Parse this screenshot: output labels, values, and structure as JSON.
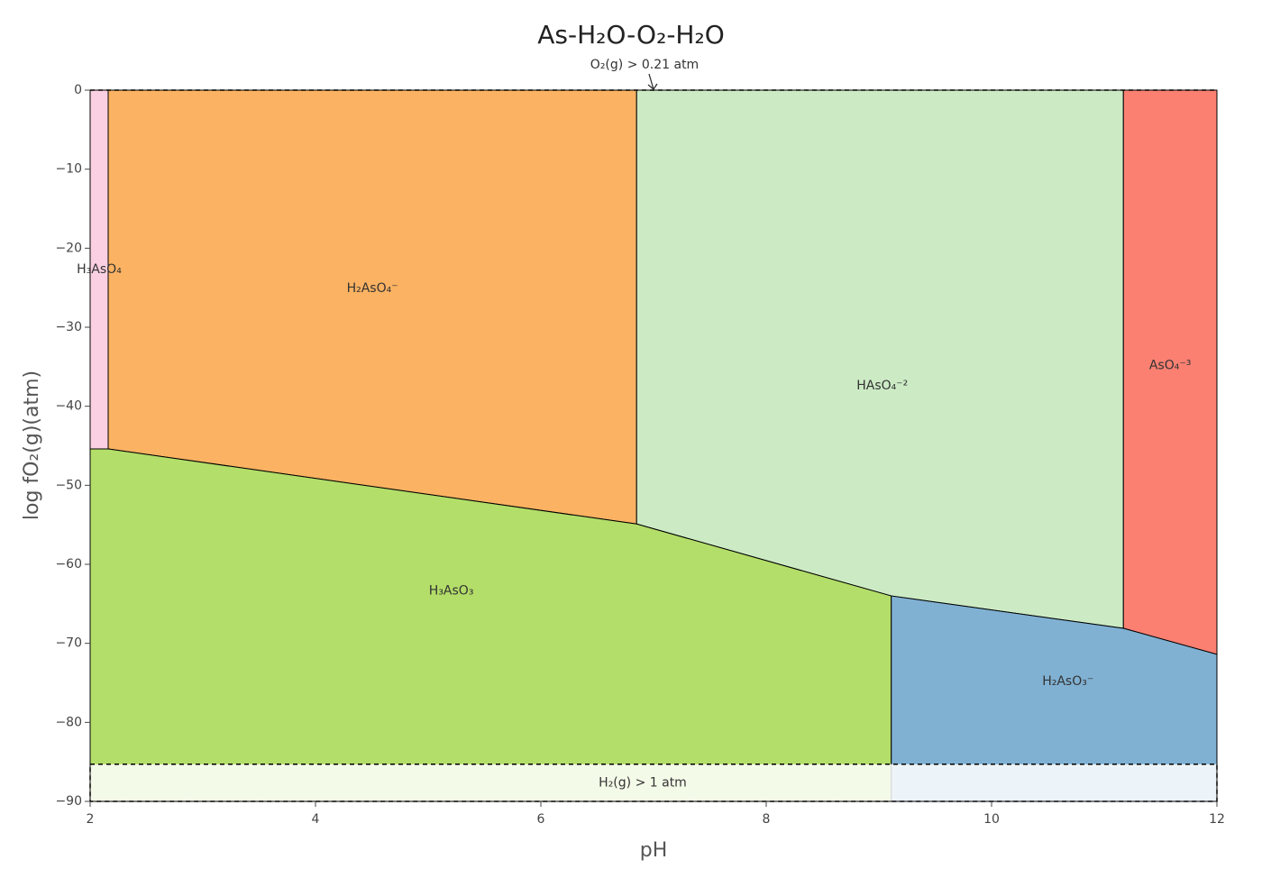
{
  "chart_data": {
    "type": "predominance",
    "title": "As-H₂O-O₂-H₂O",
    "x_label": "pH",
    "y_label": "log fO₂(g)(atm)",
    "xlim": [
      2,
      12
    ],
    "ylim": [
      -90,
      0
    ],
    "xticks": [
      2,
      4,
      6,
      8,
      10,
      12
    ],
    "yticks": [
      {
        "value": 0,
        "label": "0"
      },
      {
        "value": -10,
        "label": "−10"
      },
      {
        "value": -20,
        "label": "−20"
      },
      {
        "value": -30,
        "label": "−30"
      },
      {
        "value": -40,
        "label": "−40"
      },
      {
        "value": -50,
        "label": "−50"
      },
      {
        "value": -60,
        "label": "−60"
      },
      {
        "value": -70,
        "label": "−70"
      },
      {
        "value": -80,
        "label": "−80"
      },
      {
        "value": -90,
        "label": "−90"
      }
    ],
    "o2_limit": 0,
    "o2_label": "O₂(g) > 0.21 atm",
    "o2_label_x": 7,
    "h2_limit": -85.3,
    "h2_label": "H₂(g) > 1 atm",
    "regions": [
      {
        "name": "H₃AsO₄",
        "color": "#fbd0e2",
        "x": [
          2,
          2.16,
          2.16,
          2
        ],
        "y": [
          0,
          0,
          -45.4,
          -45.4
        ]
      },
      {
        "name": "H₂AsO₄⁻",
        "color": "#fbb262",
        "x": [
          2.16,
          6.85,
          6.85,
          2.16
        ],
        "y": [
          0,
          0,
          -54.9,
          -45.4
        ]
      },
      {
        "name": "HAsO₄⁻²",
        "color": "#ccebc5",
        "x": [
          6.85,
          11.17,
          11.17,
          9.11,
          6.85
        ],
        "y": [
          0,
          0,
          -68.1,
          -64.0,
          -54.9
        ]
      },
      {
        "name": "AsO₄⁻³",
        "color": "#fb8072",
        "x": [
          11.17,
          12,
          12,
          11.17
        ],
        "y": [
          0,
          0,
          -71.4,
          -68.1
        ]
      },
      {
        "name": "H₃AsO₃",
        "color": "#b3de69",
        "x": [
          2,
          2.16,
          6.85,
          9.11,
          9.11,
          2
        ],
        "y": [
          -45.4,
          -45.4,
          -54.9,
          -64.0,
          -90,
          -90
        ]
      },
      {
        "name": "H₂AsO₃⁻",
        "color": "#80b1d3",
        "x": [
          9.11,
          11.17,
          12,
          12,
          9.11
        ],
        "y": [
          -64.0,
          -68.1,
          -71.4,
          -90,
          -90
        ]
      }
    ]
  }
}
